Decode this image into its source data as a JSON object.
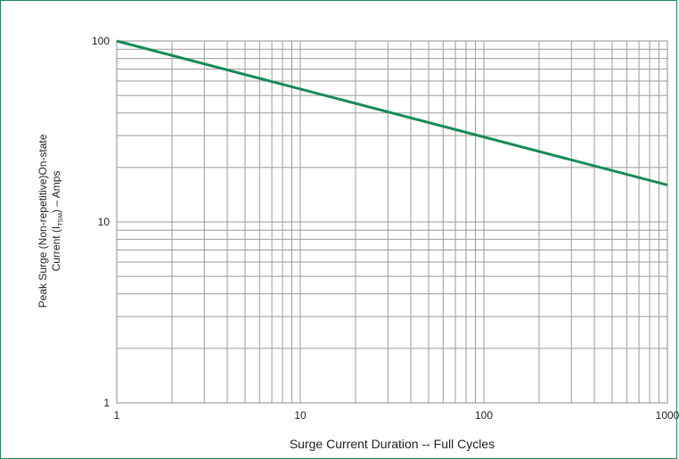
{
  "chart_data": {
    "type": "line",
    "title": "",
    "xlabel": "Surge Current Duration -- Full Cycles",
    "ylabel_line1": "Peak Surge (Non-repetitive)On-state",
    "ylabel_line2_prefix": "Current (I",
    "ylabel_subscript": "TSM",
    "ylabel_line2_suffix": ") – Amps",
    "x_scale": "log",
    "y_scale": "log",
    "xlim": [
      1,
      1000
    ],
    "ylim": [
      1,
      100
    ],
    "x_tick_labels": [
      "1",
      "10",
      "100",
      "1000"
    ],
    "y_tick_labels": [
      "1",
      "10",
      "100"
    ],
    "grid": true,
    "series": [
      {
        "color": "#178a55",
        "x": [
          1,
          1000
        ],
        "y": [
          100,
          16
        ]
      }
    ]
  }
}
